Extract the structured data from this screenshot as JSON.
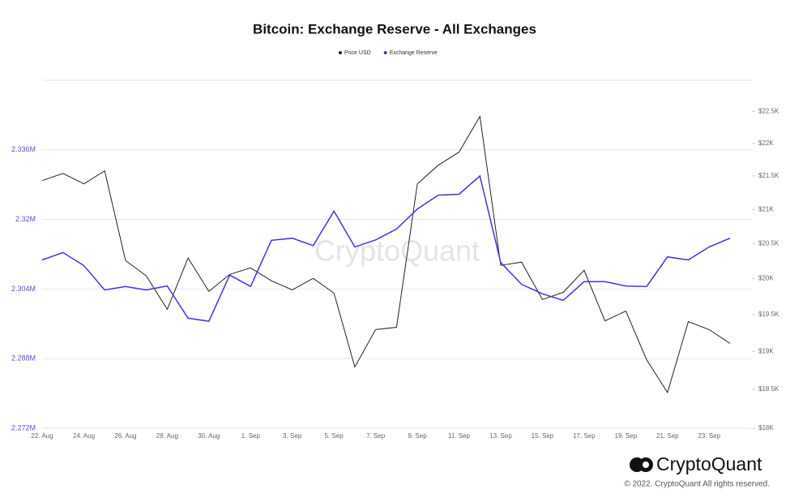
{
  "chart_data": {
    "type": "line",
    "title": "Bitcoin: Exchange Reserve - All Exchanges",
    "categories": [
      "22. Aug",
      null,
      "24. Aug",
      null,
      "26. Aug",
      null,
      "28. Aug",
      null,
      "30. Aug",
      null,
      "1. Sep",
      null,
      "3. Sep",
      null,
      "5. Sep",
      null,
      "7. Sep",
      null,
      "9. Sep",
      null,
      "11. Sep",
      null,
      "13. Sep",
      null,
      "15. Sep",
      null,
      "17. Sep",
      null,
      "19. Sep",
      null,
      "21. Sep",
      null,
      "23. Sep",
      null
    ],
    "series": [
      {
        "name": "Price USD",
        "color": "#222222",
        "axis": "y2",
        "values": [
          21431,
          21540,
          21381,
          21578,
          20259,
          20039,
          19573,
          20294,
          19821,
          20061,
          20153,
          19970,
          19843,
          20005,
          19798,
          18793,
          19295,
          19327,
          21381,
          21665,
          21865,
          22423,
          20189,
          20235,
          19708,
          19809,
          20119,
          19415,
          19549,
          18889,
          18459,
          19405,
          19295,
          19107
        ]
      },
      {
        "name": "Exchange Reserve",
        "color": "#4a2ee0",
        "values": [
          2.3107,
          2.3124,
          2.3094,
          2.3038,
          2.3046,
          2.3038,
          2.3047,
          2.2973,
          2.2966,
          2.3072,
          2.3046,
          2.3152,
          2.3157,
          2.314,
          2.3219,
          2.3137,
          2.3153,
          2.3178,
          2.3224,
          2.3256,
          2.3258,
          2.33,
          2.3101,
          2.3051,
          2.3029,
          2.3014,
          2.3057,
          2.3057,
          2.3047,
          2.3046,
          2.3114,
          2.3107,
          2.3137,
          2.3157
        ]
      }
    ],
    "ylim": [
      2.272,
      2.352
    ],
    "yticks": [
      {
        "value": 2.272,
        "label": "2.272M"
      },
      {
        "value": 2.288,
        "label": "2.288M"
      },
      {
        "value": 2.304,
        "label": "2.304M"
      },
      {
        "value": 2.32,
        "label": "2.32M"
      },
      {
        "value": 2.336,
        "label": "2.336M"
      }
    ],
    "y2lim": [
      18000,
      23000
    ],
    "y2log": true,
    "y2ticks": [
      {
        "value": 18000,
        "label": "$18K"
      },
      {
        "value": 18500,
        "label": "$18.5K"
      },
      {
        "value": 19000,
        "label": "$19K"
      },
      {
        "value": 19500,
        "label": "$19.5K"
      },
      {
        "value": 20000,
        "label": "$20K"
      },
      {
        "value": 20500,
        "label": "$20.5K"
      },
      {
        "value": 21000,
        "label": "$21K"
      },
      {
        "value": 21500,
        "label": "$21.5K"
      },
      {
        "value": 22000,
        "label": "$22K"
      },
      {
        "value": 22500,
        "label": "$22.5K"
      }
    ],
    "grid": true,
    "legend": "top",
    "watermark": "CryptoQuant",
    "brand": "CryptoQuant",
    "copyright": "© 2022. CryptoQuant All rights reserved."
  }
}
